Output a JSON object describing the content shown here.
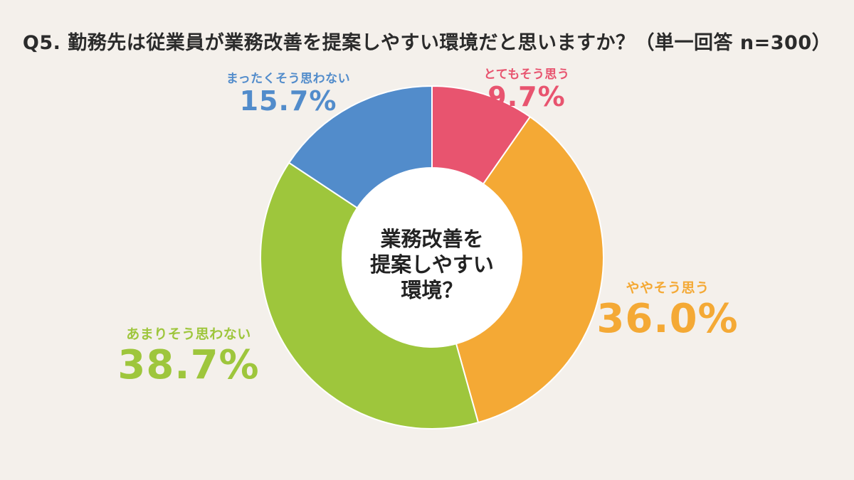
{
  "chart_data": {
    "type": "pie",
    "title": "Q5. 勤務先は従業員が業務改善を提案しやすい環境だと思いますか？（単一回答 n=300）",
    "center_text": [
      "業務改善を",
      "提案しやすい",
      "環境？"
    ],
    "slices": [
      {
        "label": "とてもそう思う",
        "value": 9.7,
        "display": "9.7%",
        "color": "#e8546f"
      },
      {
        "label": "ややそう思う",
        "value": 36.0,
        "display": "36.0%",
        "color": "#f4a935"
      },
      {
        "label": "あまりそう思わない",
        "value": 38.7,
        "display": "38.7%",
        "color": "#9ec63c"
      },
      {
        "label": "まったくそう思わない",
        "value": 15.7,
        "display": "15.7%",
        "color": "#528ccb"
      }
    ]
  }
}
